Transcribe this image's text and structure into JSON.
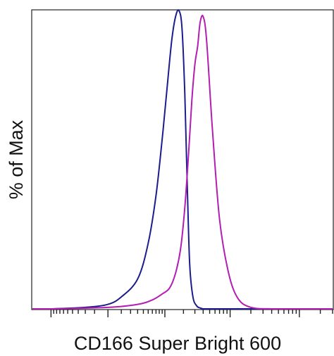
{
  "chart_data": {
    "type": "line",
    "title": "",
    "xlabel": "CD166 Super Bright 600",
    "ylabel": "% of Max",
    "x_scale": "log",
    "xlim": [
      -2000,
      300000
    ],
    "ylim": [
      0,
      100
    ],
    "grid": false,
    "legend": "none",
    "x_tick_labels_shown": false,
    "series": [
      {
        "color": "#1c1c8c",
        "x": [
          -1000,
          -200,
          0,
          100,
          300,
          500,
          700,
          900,
          1100,
          1300,
          1500,
          1700,
          1900,
          2100,
          2300,
          2500,
          2800,
          3200,
          3600,
          4000,
          4500,
          5500
        ],
        "y": [
          0,
          0.5,
          1.5,
          4,
          10,
          22,
          38,
          57,
          75,
          90,
          98,
          100,
          94,
          72,
          40,
          15,
          4,
          1,
          0.3,
          0,
          0,
          0
        ]
      },
      {
        "color": "#b21eb4",
        "x": [
          -1000,
          0,
          300,
          600,
          900,
          1200,
          1500,
          1800,
          2100,
          2400,
          2700,
          3000,
          3300,
          3600,
          4000,
          4500,
          5500,
          7000,
          9500,
          13000,
          20000,
          40000
        ],
        "y": [
          0,
          0.5,
          1.5,
          3,
          5,
          7,
          12,
          20,
          34,
          52,
          70,
          82,
          88,
          96,
          98,
          90,
          60,
          30,
          12,
          3.5,
          0.5,
          0
        ]
      }
    ]
  }
}
